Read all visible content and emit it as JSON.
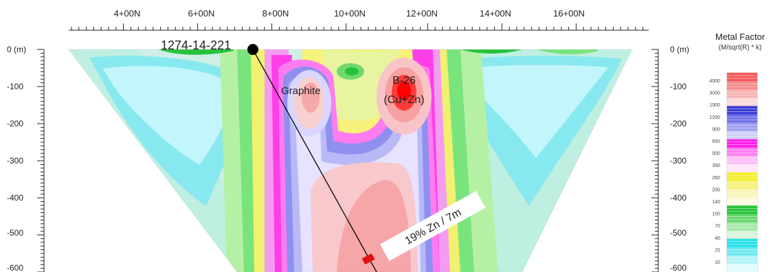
{
  "x_axis": {
    "ticks": [
      "4+00N",
      "6+00N",
      "8+00N",
      "10+00N",
      "12+00N",
      "14+00N",
      "16+00N"
    ]
  },
  "depth_axis": {
    "ticks": [
      "0 (m)",
      "-100",
      "-200",
      "-300",
      "-400",
      "-500",
      "-600"
    ]
  },
  "annotations": {
    "drillhole": "1274-14-221",
    "graphite": "Graphite",
    "target": "B-26",
    "target_sub": "(Cu+Zn)",
    "intercept": "19% Zn / 7m"
  },
  "legend": {
    "title": "Metal Factor",
    "subtitle": "(M/sqrt(R) * k)",
    "values": [
      "4500",
      "3000",
      "1500",
      "1200",
      "900",
      "650",
      "500",
      "350",
      "260",
      "200",
      "140",
      "100",
      "70",
      "40",
      "25",
      "10"
    ]
  },
  "colors": {
    "red": "#f04545",
    "blue": "#4b4bd8",
    "magenta": "#ff1ee8",
    "yellow": "#f5ee2c",
    "green": "#27c23a",
    "cyan": "#28dfe8",
    "drillhole_line": "#000000",
    "intercept_label": "#d51010"
  }
}
